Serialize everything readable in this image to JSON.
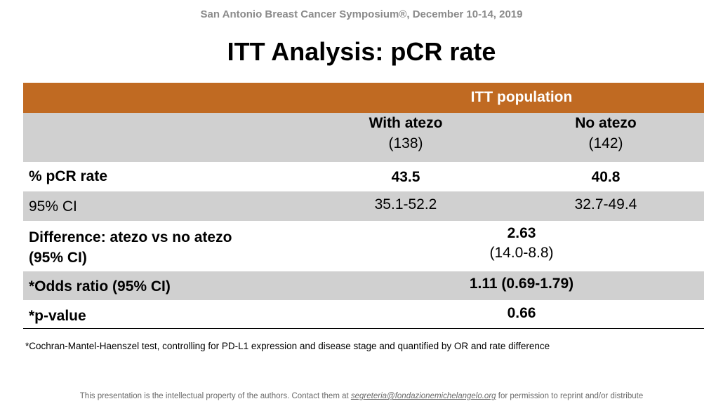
{
  "conference": "San Antonio Breast Cancer Symposium®, December 10-14, 2019",
  "title": "ITT Analysis: pCR rate",
  "table": {
    "group_header": "ITT population",
    "columns": [
      {
        "name": "With atezo",
        "n": "(138)"
      },
      {
        "name": "No atezo",
        "n": "(142)"
      }
    ],
    "rows": {
      "pcr": {
        "label": "% pCR rate",
        "with": "43.5",
        "without": "40.8"
      },
      "ci": {
        "label": "95% CI",
        "with": "35.1-52.2",
        "without": "32.7-49.4"
      },
      "diff": {
        "label_line1": "Difference: atezo vs no atezo",
        "label_line2": "(95% CI)",
        "value": "2.63",
        "ci": "(14.0-8.8)"
      },
      "odds": {
        "label": "*Odds ratio (95% CI)",
        "value": "1.11 (0.69-1.79)"
      },
      "pvalue": {
        "label": "*p-value",
        "value": "0.66"
      }
    }
  },
  "footnote": "*Cochran-Mantel-Haenszel test, controlling for PD-L1 expression and disease stage and quantified by OR and rate difference",
  "copyright": {
    "before": "This presentation is the intellectual property of the authors. Contact them at ",
    "email": "segreteria@fondazionemichelangelo.org",
    "after": " for permission to reprint and/or distribute"
  },
  "colors": {
    "header_orange": "#c06a22",
    "row_grey": "#d0d0d0"
  }
}
